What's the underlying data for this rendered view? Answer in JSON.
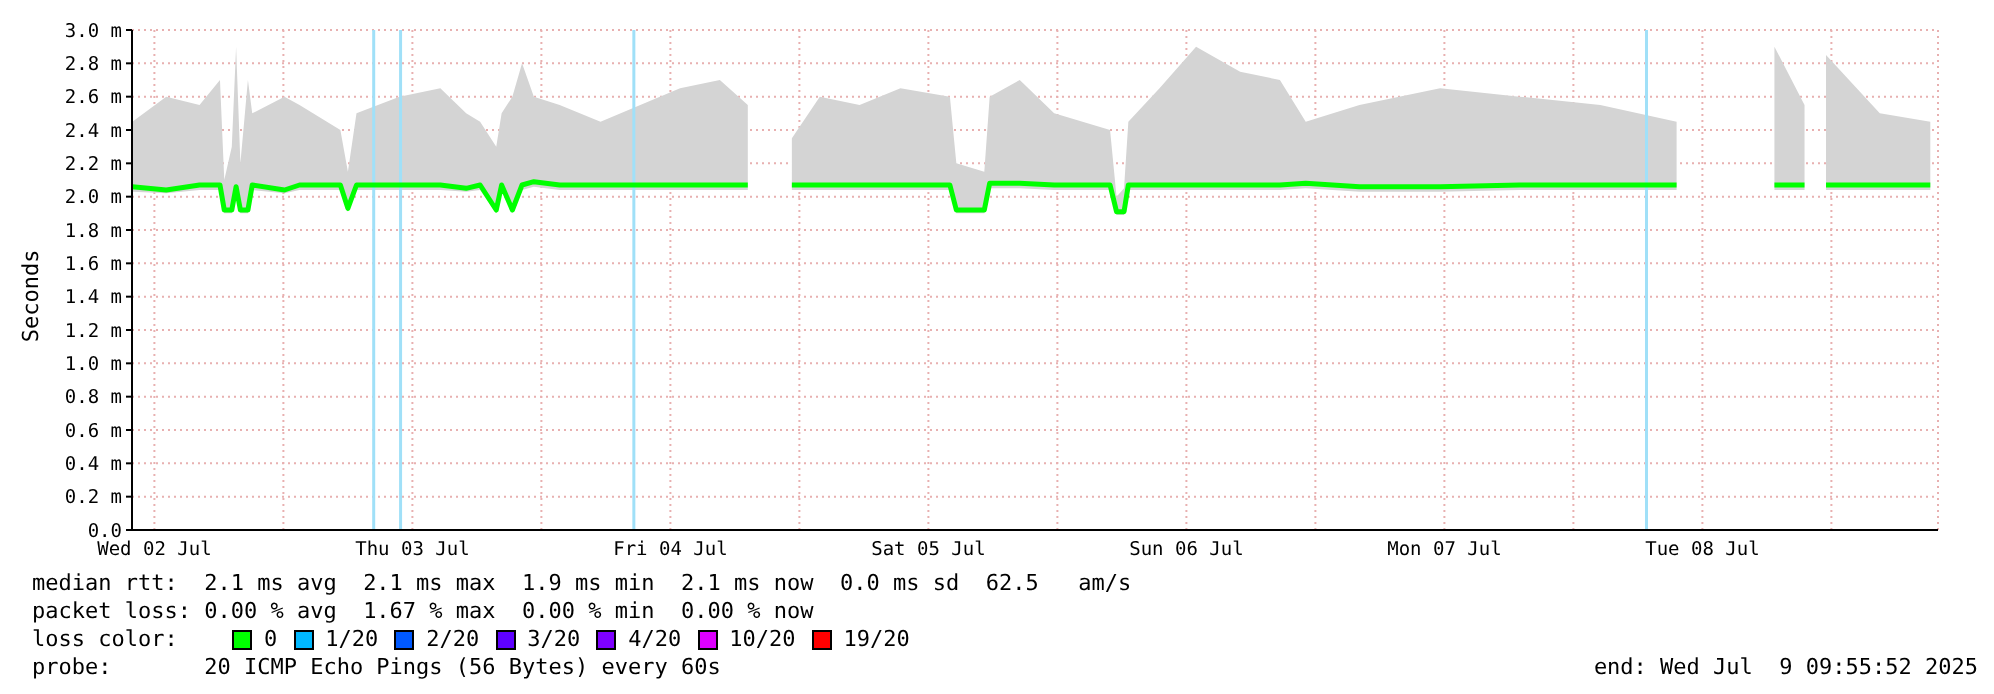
{
  "chart_data": {
    "type": "line",
    "ylabel": "Seconds",
    "legend_title": "loss color:",
    "legend": "bottom",
    "grid": true,
    "marker": "none",
    "line_style": "solid",
    "xlim": [
      "2025-07-02T09:55",
      "2025-07-09T09:55"
    ],
    "xticks": [
      {
        "value": "2025-07-02T12:00",
        "label": "Wed 02 Jul"
      },
      {
        "value": "2025-07-03T00:00",
        "label": null
      },
      {
        "value": "2025-07-03T12:00",
        "label": "Thu 03 Jul"
      },
      {
        "value": "2025-07-04T00:00",
        "label": null
      },
      {
        "value": "2025-07-04T12:00",
        "label": "Fri 04 Jul"
      },
      {
        "value": "2025-07-05T00:00",
        "label": null
      },
      {
        "value": "2025-07-05T12:00",
        "label": "Sat 05 Jul"
      },
      {
        "value": "2025-07-06T00:00",
        "label": null
      },
      {
        "value": "2025-07-06T12:00",
        "label": "Sun 06 Jul"
      },
      {
        "value": "2025-07-07T00:00",
        "label": null
      },
      {
        "value": "2025-07-07T12:00",
        "label": "Mon 07 Jul"
      },
      {
        "value": "2025-07-08T00:00",
        "label": null
      },
      {
        "value": "2025-07-08T12:00",
        "label": "Tue 08 Jul"
      },
      {
        "value": "2025-07-09T00:00",
        "label": null
      }
    ],
    "ylim": [
      0,
      3.0
    ],
    "yticks": [
      {
        "value": 0,
        "label": "0.0"
      },
      {
        "value": 0.2,
        "label": "0.2 m"
      },
      {
        "value": 0.4,
        "label": "0.4 m"
      },
      {
        "value": 0.6,
        "label": "0.6 m"
      },
      {
        "value": 0.8,
        "label": "0.8 m"
      },
      {
        "value": 1.0,
        "label": "1.0 m"
      },
      {
        "value": 1.2,
        "label": "1.2 m"
      },
      {
        "value": 1.4,
        "label": "1.4 m"
      },
      {
        "value": 1.6,
        "label": "1.6 m"
      },
      {
        "value": 1.8,
        "label": "1.8 m"
      },
      {
        "value": 2.0,
        "label": "2.0 m"
      },
      {
        "value": 2.2,
        "label": "2.2 m"
      },
      {
        "value": 2.4,
        "label": "2.4 m"
      },
      {
        "value": 2.6,
        "label": "2.6 m"
      },
      {
        "value": 2.8,
        "label": "2.8 m"
      },
      {
        "value": 3.0,
        "label": "3.0 m"
      }
    ],
    "x": [
      "2025-07-02T09:57",
      "2025-07-02T13:06",
      "2025-07-02T16:12",
      "2025-07-02T18:06",
      "2025-07-02T18:30",
      "2025-07-02T19:12",
      "2025-07-02T19:36",
      "2025-07-02T20:00",
      "2025-07-02T20:42",
      "2025-07-02T21:06",
      "2025-07-03T00:06",
      "2025-07-03T01:30",
      "2025-07-03T05:18",
      "2025-07-03T06:00",
      "2025-07-03T06:48",
      "2025-07-03T10:48",
      "2025-07-03T14:36",
      "2025-07-03T17:00",
      "2025-07-03T18:18",
      "2025-07-03T19:48",
      "2025-07-03T20:18",
      "2025-07-03T21:18",
      "2025-07-03T22:12",
      "2025-07-03T23:18",
      "2025-07-04T01:42",
      "2025-07-04T05:30",
      "2025-07-04T09:12",
      "2025-07-04T12:54",
      "2025-07-04T16:36",
      "2025-07-04T19:12",
      "2025-07-04T21:18",
      "2025-07-04T23:18",
      "2025-07-05T01:54",
      "2025-07-05T05:36",
      "2025-07-05T09:24",
      "2025-07-05T14:00",
      "2025-07-05T14:36",
      "2025-07-05T17:12",
      "2025-07-05T17:42",
      "2025-07-05T20:30",
      "2025-07-05T23:42",
      "2025-07-06T04:54",
      "2025-07-06T05:30",
      "2025-07-06T06:12",
      "2025-07-06T06:36",
      "2025-07-06T09:30",
      "2025-07-06T12:54",
      "2025-07-06T17:00",
      "2025-07-06T20:42",
      "2025-07-06T23:06",
      "2025-07-07T04:06",
      "2025-07-07T11:36",
      "2025-07-07T19:00",
      "2025-07-08T02:30",
      "2025-07-08T09:36",
      "2025-07-08T11:48",
      "2025-07-08T18:42",
      "2025-07-08T21:30",
      "2025-07-08T22:00",
      "2025-07-08T23:30",
      "2025-07-09T04:30",
      "2025-07-09T09:12"
    ],
    "series": [
      {
        "name": "0",
        "color": "#00ff00",
        "values": [
          2.06,
          2.04,
          2.07,
          2.07,
          1.92,
          1.92,
          2.06,
          1.92,
          1.92,
          2.07,
          2.04,
          2.07,
          2.07,
          1.93,
          2.07,
          2.07,
          2.07,
          2.05,
          2.07,
          1.92,
          2.07,
          1.92,
          2.07,
          2.09,
          2.07,
          2.07,
          2.07,
          2.07,
          2.07,
          2.07,
          null,
          2.07,
          2.07,
          2.07,
          2.07,
          2.07,
          1.92,
          1.92,
          2.08,
          2.08,
          2.07,
          2.07,
          1.91,
          1.91,
          2.07,
          2.07,
          2.07,
          2.07,
          2.07,
          2.08,
          2.06,
          2.06,
          2.07,
          2.07,
          2.07,
          null,
          2.07,
          2.07,
          null,
          2.07,
          2.07,
          2.07
        ],
        "lower": [
          2.03,
          2.02,
          2.04,
          2.04,
          1.9,
          1.9,
          2.03,
          1.9,
          1.9,
          2.04,
          2.02,
          2.04,
          2.04,
          1.91,
          2.04,
          2.04,
          2.04,
          2.03,
          2.04,
          1.9,
          2.04,
          1.9,
          2.04,
          2.06,
          2.04,
          2.04,
          2.04,
          2.04,
          2.04,
          2.04,
          null,
          2.04,
          2.04,
          2.04,
          2.04,
          2.04,
          1.9,
          1.9,
          2.05,
          2.05,
          2.04,
          2.04,
          1.89,
          1.89,
          2.04,
          2.04,
          2.04,
          2.04,
          2.04,
          2.05,
          2.03,
          2.03,
          2.04,
          2.04,
          2.04,
          null,
          2.04,
          2.04,
          null,
          2.04,
          2.04,
          2.04
        ],
        "upper": [
          2.45,
          2.6,
          2.55,
          2.7,
          2.1,
          2.3,
          2.9,
          2.2,
          2.7,
          2.5,
          2.6,
          2.55,
          2.4,
          2.15,
          2.5,
          2.6,
          2.65,
          2.5,
          2.45,
          2.3,
          2.5,
          2.6,
          2.8,
          2.6,
          2.55,
          2.45,
          2.55,
          2.65,
          2.7,
          2.55,
          null,
          2.35,
          2.6,
          2.55,
          2.65,
          2.6,
          2.2,
          2.15,
          2.6,
          2.7,
          2.5,
          2.4,
          2.0,
          2.05,
          2.45,
          2.65,
          2.9,
          2.75,
          2.7,
          2.45,
          2.55,
          2.65,
          2.6,
          2.55,
          2.45,
          null,
          2.9,
          2.55,
          null,
          2.85,
          2.5,
          2.45
        ]
      },
      {
        "name": "1/20",
        "color": "#00b8ff",
        "values": [
          null,
          null,
          null,
          null,
          null,
          null,
          null,
          null,
          null,
          null,
          null,
          null,
          null,
          null,
          null,
          null,
          null,
          null,
          null,
          null,
          null,
          null,
          null,
          null,
          null,
          null,
          null,
          null,
          null,
          null,
          null,
          null,
          null,
          null,
          null,
          null,
          null,
          null,
          null,
          null,
          null,
          null,
          null,
          null,
          null,
          null,
          null,
          null,
          null,
          null,
          null,
          null,
          null,
          null,
          null,
          null,
          null,
          null,
          null,
          null,
          null,
          null
        ]
      },
      {
        "name": "2/20",
        "color": "#0059ff",
        "values": [
          null,
          null,
          null,
          null,
          null,
          null,
          null,
          null,
          null,
          null,
          null,
          null,
          null,
          null,
          null,
          null,
          null,
          null,
          null,
          null,
          null,
          null,
          null,
          null,
          null,
          null,
          null,
          null,
          null,
          null,
          null,
          null,
          null,
          null,
          null,
          null,
          null,
          null,
          null,
          null,
          null,
          null,
          null,
          null,
          null,
          null,
          null,
          null,
          null,
          null,
          null,
          null,
          null,
          null,
          null,
          null,
          null,
          null,
          null,
          null,
          null,
          null
        ]
      },
      {
        "name": "3/20",
        "color": "#5e00ff",
        "values": [
          null,
          null,
          null,
          null,
          null,
          null,
          null,
          null,
          null,
          null,
          null,
          null,
          null,
          null,
          null,
          null,
          null,
          null,
          null,
          null,
          null,
          null,
          null,
          null,
          null,
          null,
          null,
          null,
          null,
          null,
          null,
          null,
          null,
          null,
          null,
          null,
          null,
          null,
          null,
          null,
          null,
          null,
          null,
          null,
          null,
          null,
          null,
          null,
          null,
          null,
          null,
          null,
          null,
          null,
          null,
          null,
          null,
          null,
          null,
          null,
          null,
          null
        ]
      },
      {
        "name": "4/20",
        "color": "#7e00ff",
        "values": [
          null,
          null,
          null,
          null,
          null,
          null,
          null,
          null,
          null,
          null,
          null,
          null,
          null,
          null,
          null,
          null,
          null,
          null,
          null,
          null,
          null,
          null,
          null,
          null,
          null,
          null,
          null,
          null,
          null,
          null,
          null,
          null,
          null,
          null,
          null,
          null,
          null,
          null,
          null,
          null,
          null,
          null,
          null,
          null,
          null,
          null,
          null,
          null,
          null,
          null,
          null,
          null,
          null,
          null,
          null,
          null,
          null,
          null,
          null,
          null,
          null,
          null
        ]
      },
      {
        "name": "10/20",
        "color": "#dd00ff",
        "values": [
          null,
          null,
          null,
          null,
          null,
          null,
          null,
          null,
          null,
          null,
          null,
          null,
          null,
          null,
          null,
          null,
          null,
          null,
          null,
          null,
          null,
          null,
          null,
          null,
          null,
          null,
          null,
          null,
          null,
          null,
          null,
          null,
          null,
          null,
          null,
          null,
          null,
          null,
          null,
          null,
          null,
          null,
          null,
          null,
          null,
          null,
          null,
          null,
          null,
          null,
          null,
          null,
          null,
          null,
          null,
          null,
          null,
          null,
          null,
          null,
          null,
          null
        ]
      },
      {
        "name": "19/20",
        "color": "#ff0000",
        "values": [
          null,
          null,
          null,
          null,
          null,
          null,
          null,
          null,
          null,
          null,
          null,
          null,
          null,
          null,
          null,
          null,
          null,
          null,
          null,
          null,
          null,
          null,
          null,
          null,
          null,
          null,
          null,
          null,
          null,
          null,
          null,
          null,
          null,
          null,
          null,
          null,
          null,
          null,
          null,
          null,
          null,
          null,
          null,
          null,
          null,
          null,
          null,
          null,
          null,
          null,
          null,
          null,
          null,
          null,
          null,
          null,
          null,
          null,
          null,
          null,
          null,
          null
        ]
      }
    ],
    "ref_lines": [
      {
        "axis": "x",
        "value": "2025-07-03T08:24",
        "color": "#a0e0f8"
      },
      {
        "axis": "x",
        "value": "2025-07-03T10:54",
        "color": "#a0e0f8"
      },
      {
        "axis": "x",
        "value": "2025-07-04T08:36",
        "color": "#a0e0f8"
      },
      {
        "axis": "x",
        "value": "2025-07-08T06:48",
        "color": "#a0e0f8"
      }
    ],
    "annotations": [
      "median rtt:  2.1 ms avg  2.1 ms max  1.9 ms min  2.1 ms now  0.0 ms sd  62.5   am/s",
      "packet loss: 0.00 % avg  1.67 % max  0.00 % min  0.00 % now",
      "probe:       20 ICMP Echo Pings (56 Bytes) every 60s",
      "end: Wed Jul  9 09:55:52 2025"
    ]
  }
}
